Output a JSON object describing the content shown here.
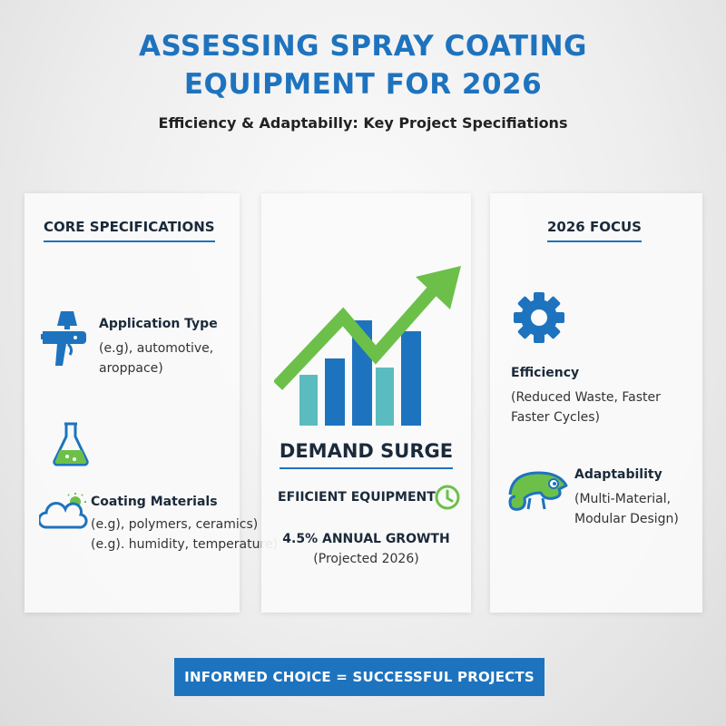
{
  "header": {
    "title_line1": "ASSESSING SPRAY COATING",
    "title_line2": "EQUIPMENT FOR 2026",
    "subtitle": "Efficiency & Adaptabilly: Key Project Specifiations"
  },
  "left_panel": {
    "heading": "CORE SPECIFICATIONS",
    "items": [
      {
        "icon": "spray-gun-icon",
        "label": "Application Type",
        "desc1": "(e.g), automotive,",
        "desc2": "aroppace)"
      },
      {
        "icon": "flask-icon"
      },
      {
        "icon": "weather-icon",
        "label": "Coating Materials",
        "desc1": "(e.g), polymers, ceramics)",
        "desc2": "(e.g). humidity, temperature)"
      }
    ]
  },
  "center_panel": {
    "icon": "growth-chart-icon",
    "heading": "DEMAND SURGE",
    "equipment_label": "EFIICIENT EQUIPMENT",
    "equipment_icon": "clock-icon",
    "growth": "4.5% ANNUAL GROWTH",
    "projection": "(Projected 2026)"
  },
  "right_panel": {
    "heading": "2026 FOCUS",
    "items": [
      {
        "icon": "gear-icon",
        "label": "Efficiency",
        "desc1": "(Reduced Waste, Faster",
        "desc2": "Faster Cycles)"
      },
      {
        "icon": "chameleon-icon",
        "label": "Adaptability",
        "desc1": "(Multi-Material,",
        "desc2": "Modular Design)"
      }
    ]
  },
  "footer": {
    "banner": "INFORMED CHOICE = SUCCESSFUL PROJECTS"
  },
  "colors": {
    "brand_blue": "#1e73be",
    "accent_green": "#6cc04a",
    "teal": "#5bbcc0"
  }
}
